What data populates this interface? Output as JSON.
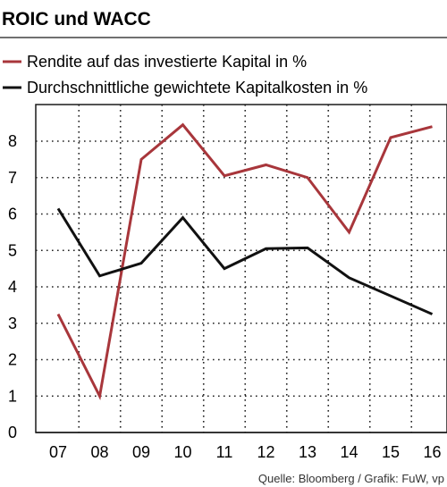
{
  "chart_data": {
    "type": "line",
    "title": "ROIC und WACC",
    "categories": [
      "07",
      "08",
      "09",
      "10",
      "11",
      "12",
      "13",
      "14",
      "15",
      "16"
    ],
    "series": [
      {
        "name": "Rendite auf das investierte Kapital in %",
        "color": "#a8363b",
        "values": [
          3.25,
          1.0,
          7.5,
          8.45,
          7.05,
          7.35,
          7.0,
          5.5,
          8.1,
          8.4
        ]
      },
      {
        "name": "Durchschnittliche gewichtete Kapitalkosten in %",
        "color": "#111111",
        "values": [
          6.15,
          4.3,
          4.65,
          5.9,
          4.5,
          5.05,
          5.07,
          4.25,
          3.75,
          3.25
        ]
      }
    ],
    "ylim": [
      0,
      9
    ],
    "yticks": [
      0,
      1,
      2,
      3,
      4,
      5,
      6,
      7,
      8
    ],
    "grid": true,
    "legend": "top-left",
    "xlabel": "",
    "ylabel": ""
  },
  "source": "Quelle: Bloomberg / Grafik: FuW, vp"
}
